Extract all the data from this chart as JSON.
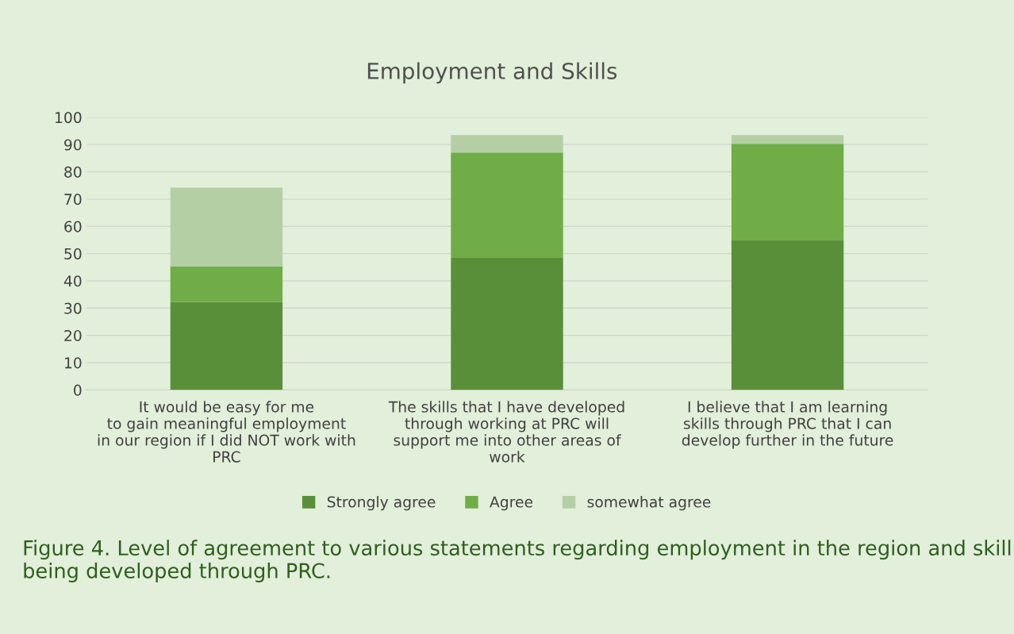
{
  "chart_data": {
    "type": "bar",
    "title": "Employment and Skills",
    "stacked": true,
    "categories": [
      "It would be easy for me\nto gain meaningful employment\nin our region if I did NOT work with\nPRC",
      "The skills that I have developed\nthrough working at PRC will\nsupport me into other areas of\nwork",
      "I believe that I am learning\nskills through PRC that I can\ndevelop further in the future"
    ],
    "series": [
      {
        "name": "Strongly agree",
        "color": "#5a8f39",
        "values": [
          32.3,
          48.4,
          54.8
        ]
      },
      {
        "name": "Agree",
        "color": "#70ad47",
        "values": [
          12.9,
          38.7,
          35.5
        ]
      },
      {
        "name": "somewhat agree",
        "color": "#b5cfa5",
        "values": [
          29.0,
          6.4,
          3.2
        ]
      }
    ],
    "ylim": [
      0,
      100
    ],
    "yticks": [
      0,
      10,
      20,
      30,
      40,
      50,
      60,
      70,
      80,
      90,
      100
    ],
    "grid": "y",
    "legend": "bottom",
    "annotations": [
      "Figure 4. Level of agreement to various statements regarding employment in the region and skill being developed through PRC."
    ]
  }
}
